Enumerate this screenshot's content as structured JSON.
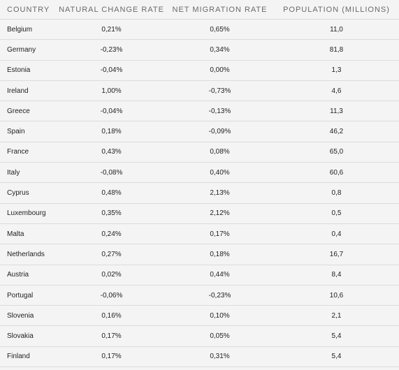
{
  "table": {
    "headers": [
      "COUNTRY",
      "NATURAL CHANGE RATE",
      "NET MIGRATION RATE",
      "POPULATION (MILLIONS)"
    ],
    "rows": [
      [
        "Belgium",
        "0,21%",
        "0,65%",
        "11,0"
      ],
      [
        "Germany",
        "-0,23%",
        "0,34%",
        "81,8"
      ],
      [
        "Estonia",
        "-0,04%",
        "0,00%",
        "1,3"
      ],
      [
        "Ireland",
        "1,00%",
        "-0,73%",
        "4,6"
      ],
      [
        "Greece",
        "-0,04%",
        "-0,13%",
        "11,3"
      ],
      [
        "Spain",
        "0,18%",
        "-0,09%",
        "46,2"
      ],
      [
        "France",
        "0,43%",
        "0,08%",
        "65,0"
      ],
      [
        "Italy",
        "-0,08%",
        "0,40%",
        "60,6"
      ],
      [
        "Cyprus",
        "0,48%",
        "2,13%",
        "0,8"
      ],
      [
        "Luxembourg",
        "0,35%",
        "2,12%",
        "0,5"
      ],
      [
        "Malta",
        "0,24%",
        "0,17%",
        "0,4"
      ],
      [
        "Netherlands",
        "0,27%",
        "0,18%",
        "16,7"
      ],
      [
        "Austria",
        "0,02%",
        "0,44%",
        "8,4"
      ],
      [
        "Portugal",
        "-0,06%",
        "-0,23%",
        "10,6"
      ],
      [
        "Slovenia",
        "0,16%",
        "0,10%",
        "2,1"
      ],
      [
        "Slovakia",
        "0,17%",
        "0,05%",
        "5,4"
      ],
      [
        "Finland",
        "0,17%",
        "0,31%",
        "5,4"
      ]
    ]
  }
}
